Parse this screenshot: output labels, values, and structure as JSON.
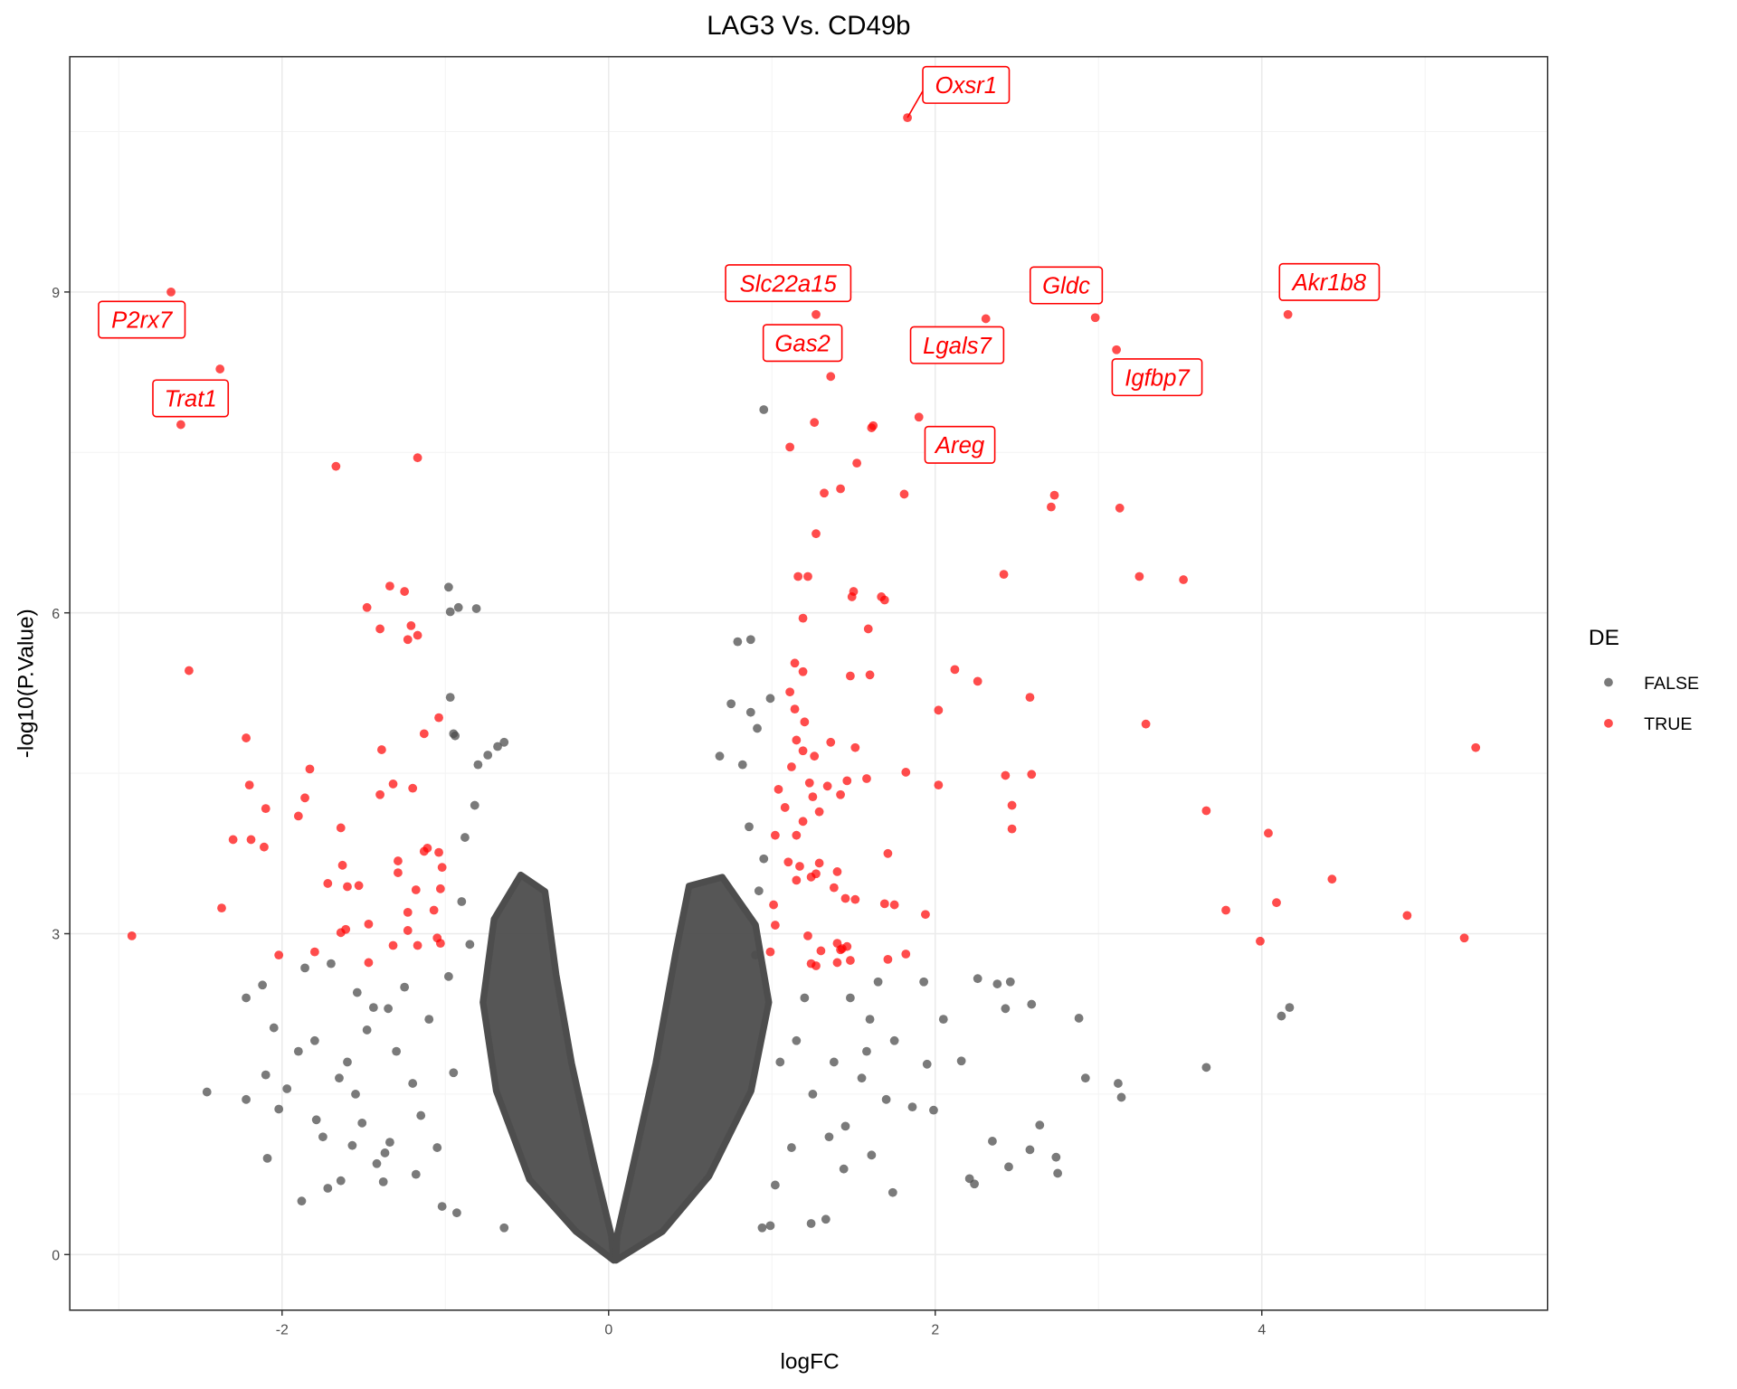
{
  "chart_data": {
    "type": "scatter",
    "title": "LAG3 Vs. CD49b",
    "xlabel": "logFC",
    "ylabel": "-log10(P.Value)",
    "xlim": [
      -3.3,
      5.75
    ],
    "ylim": [
      -0.52,
      11.2
    ],
    "x_ticks": [
      -2,
      0,
      2,
      4
    ],
    "y_ticks": [
      0,
      3,
      6,
      9
    ],
    "grid": true,
    "legend": {
      "title": "DE",
      "position": "right",
      "entries": [
        {
          "label": "FALSE",
          "color": "#4d4d4d"
        },
        {
          "label": "TRUE",
          "color": "#ff0000"
        }
      ]
    },
    "series": [
      {
        "name": "TRUE",
        "color": "#ff0000",
        "points": [
          [
            1.83,
            10.63
          ],
          [
            -2.68,
            9.0
          ],
          [
            1.27,
            8.79
          ],
          [
            2.31,
            8.75
          ],
          [
            2.98,
            8.76
          ],
          [
            4.16,
            8.79
          ],
          [
            3.11,
            8.46
          ],
          [
            -2.38,
            8.28
          ],
          [
            1.36,
            8.21
          ],
          [
            -2.62,
            7.76
          ],
          [
            1.26,
            7.78
          ],
          [
            1.61,
            7.73
          ],
          [
            1.62,
            7.75
          ],
          [
            1.9,
            7.83
          ],
          [
            1.11,
            7.55
          ],
          [
            1.52,
            7.4
          ],
          [
            -1.17,
            7.45
          ],
          [
            -1.67,
            7.37
          ],
          [
            1.42,
            7.16
          ],
          [
            1.32,
            7.12
          ],
          [
            1.81,
            7.11
          ],
          [
            2.73,
            7.1
          ],
          [
            2.71,
            6.99
          ],
          [
            3.13,
            6.98
          ],
          [
            1.27,
            6.74
          ],
          [
            1.16,
            6.34
          ],
          [
            1.22,
            6.34
          ],
          [
            2.42,
            6.36
          ],
          [
            3.25,
            6.34
          ],
          [
            3.52,
            6.31
          ],
          [
            -1.34,
            6.25
          ],
          [
            -1.25,
            6.2
          ],
          [
            1.5,
            6.2
          ],
          [
            1.49,
            6.15
          ],
          [
            1.67,
            6.15
          ],
          [
            1.69,
            6.12
          ],
          [
            -1.48,
            6.05
          ],
          [
            1.19,
            5.95
          ],
          [
            -1.21,
            5.88
          ],
          [
            -1.4,
            5.85
          ],
          [
            -1.17,
            5.79
          ],
          [
            -1.23,
            5.75
          ],
          [
            1.59,
            5.85
          ],
          [
            -2.57,
            5.46
          ],
          [
            1.14,
            5.53
          ],
          [
            1.19,
            5.45
          ],
          [
            2.12,
            5.47
          ],
          [
            1.48,
            5.41
          ],
          [
            1.6,
            5.42
          ],
          [
            2.26,
            5.36
          ],
          [
            2.58,
            5.21
          ],
          [
            1.11,
            5.26
          ],
          [
            1.14,
            5.1
          ],
          [
            2.02,
            5.09
          ],
          [
            -1.04,
            5.02
          ],
          [
            1.2,
            4.98
          ],
          [
            3.29,
            4.96
          ],
          [
            -1.13,
            4.87
          ],
          [
            -2.22,
            4.83
          ],
          [
            1.15,
            4.81
          ],
          [
            1.36,
            4.79
          ],
          [
            -1.39,
            4.72
          ],
          [
            1.51,
            4.74
          ],
          [
            5.31,
            4.74
          ],
          [
            1.19,
            4.71
          ],
          [
            1.26,
            4.66
          ],
          [
            -1.83,
            4.54
          ],
          [
            1.12,
            4.56
          ],
          [
            1.82,
            4.51
          ],
          [
            2.43,
            4.48
          ],
          [
            2.59,
            4.49
          ],
          [
            -1.32,
            4.4
          ],
          [
            -2.2,
            4.39
          ],
          [
            1.23,
            4.41
          ],
          [
            1.34,
            4.38
          ],
          [
            1.46,
            4.43
          ],
          [
            1.58,
            4.45
          ],
          [
            2.02,
            4.39
          ],
          [
            -1.2,
            4.36
          ],
          [
            1.04,
            4.35
          ],
          [
            -1.4,
            4.3
          ],
          [
            1.25,
            4.28
          ],
          [
            1.42,
            4.3
          ],
          [
            -1.86,
            4.27
          ],
          [
            2.47,
            4.2
          ],
          [
            -2.1,
            4.17
          ],
          [
            1.08,
            4.18
          ],
          [
            1.29,
            4.14
          ],
          [
            3.66,
            4.15
          ],
          [
            -1.9,
            4.1
          ],
          [
            1.19,
            4.05
          ],
          [
            -1.64,
            3.99
          ],
          [
            2.47,
            3.98
          ],
          [
            1.02,
            3.92
          ],
          [
            1.15,
            3.92
          ],
          [
            4.04,
            3.94
          ],
          [
            -2.3,
            3.88
          ],
          [
            -2.19,
            3.88
          ],
          [
            -2.11,
            3.81
          ],
          [
            -1.11,
            3.8
          ],
          [
            -1.13,
            3.77
          ],
          [
            -1.04,
            3.76
          ],
          [
            1.71,
            3.75
          ],
          [
            1.1,
            3.67
          ],
          [
            -1.29,
            3.68
          ],
          [
            -1.63,
            3.64
          ],
          [
            -1.02,
            3.62
          ],
          [
            1.17,
            3.63
          ],
          [
            1.29,
            3.66
          ],
          [
            -1.29,
            3.57
          ],
          [
            1.4,
            3.58
          ],
          [
            1.24,
            3.53
          ],
          [
            1.27,
            3.56
          ],
          [
            4.43,
            3.51
          ],
          [
            -1.72,
            3.47
          ],
          [
            -1.53,
            3.45
          ],
          [
            -1.6,
            3.44
          ],
          [
            -1.18,
            3.41
          ],
          [
            -1.03,
            3.42
          ],
          [
            1.38,
            3.43
          ],
          [
            1.15,
            3.5
          ],
          [
            1.45,
            3.33
          ],
          [
            1.51,
            3.32
          ],
          [
            1.01,
            3.27
          ],
          [
            1.69,
            3.28
          ],
          [
            1.75,
            3.27
          ],
          [
            4.09,
            3.29
          ],
          [
            3.78,
            3.22
          ],
          [
            -2.37,
            3.24
          ],
          [
            -1.07,
            3.22
          ],
          [
            -1.23,
            3.2
          ],
          [
            1.94,
            3.18
          ],
          [
            4.89,
            3.17
          ],
          [
            -1.47,
            3.09
          ],
          [
            1.02,
            3.08
          ],
          [
            -1.23,
            3.03
          ],
          [
            -1.61,
            3.04
          ],
          [
            -1.64,
            3.01
          ],
          [
            -2.92,
            2.98
          ],
          [
            1.22,
            2.98
          ],
          [
            5.24,
            2.96
          ],
          [
            -1.05,
            2.96
          ],
          [
            -1.03,
            2.91
          ],
          [
            3.99,
            2.93
          ],
          [
            1.4,
            2.91
          ],
          [
            1.43,
            2.86
          ],
          [
            1.46,
            2.88
          ],
          [
            1.42,
            2.85
          ],
          [
            -1.32,
            2.89
          ],
          [
            -1.17,
            2.89
          ],
          [
            0.99,
            2.83
          ],
          [
            1.3,
            2.84
          ],
          [
            1.82,
            2.81
          ],
          [
            -2.02,
            2.8
          ],
          [
            -1.8,
            2.83
          ],
          [
            -1.47,
            2.73
          ],
          [
            1.48,
            2.75
          ],
          [
            1.71,
            2.76
          ],
          [
            1.4,
            2.73
          ],
          [
            1.24,
            2.72
          ],
          [
            1.27,
            2.7
          ]
        ]
      },
      {
        "name": "FALSE",
        "color": "#4d4d4d",
        "points": [
          [
            0.95,
            7.9
          ],
          [
            -0.98,
            6.24
          ],
          [
            -0.92,
            6.05
          ],
          [
            -0.81,
            6.04
          ],
          [
            -0.97,
            6.01
          ],
          [
            0.79,
            5.73
          ],
          [
            0.87,
            5.75
          ],
          [
            -0.97,
            5.21
          ],
          [
            0.75,
            5.15
          ],
          [
            0.99,
            5.2
          ],
          [
            0.87,
            5.07
          ],
          [
            0.91,
            4.92
          ],
          [
            -0.64,
            4.79
          ],
          [
            -0.68,
            4.75
          ],
          [
            0.68,
            4.66
          ],
          [
            -0.95,
            4.87
          ],
          [
            -0.94,
            4.85
          ],
          [
            -0.74,
            4.67
          ],
          [
            -0.8,
            4.58
          ],
          [
            0.82,
            4.58
          ],
          [
            -2.46,
            1.52
          ],
          [
            -2.09,
            0.9
          ],
          [
            -1.88,
            0.5
          ],
          [
            -2.22,
            1.45
          ],
          [
            -2.12,
            2.52
          ],
          [
            -2.22,
            2.4
          ],
          [
            -2.05,
            2.12
          ],
          [
            4.12,
            2.23
          ],
          [
            4.17,
            2.31
          ],
          [
            3.66,
            1.75
          ],
          [
            3.12,
            1.6
          ],
          [
            3.14,
            1.47
          ],
          [
            2.92,
            1.65
          ],
          [
            2.88,
            2.21
          ],
          [
            2.26,
            2.58
          ],
          [
            2.38,
            2.53
          ],
          [
            2.46,
            2.55
          ],
          [
            2.59,
            2.34
          ],
          [
            2.43,
            2.3
          ],
          [
            2.05,
            2.2
          ],
          [
            1.93,
            2.55
          ],
          [
            2.16,
            1.81
          ],
          [
            1.95,
            1.78
          ],
          [
            1.99,
            1.35
          ],
          [
            1.86,
            1.38
          ],
          [
            2.35,
            1.06
          ],
          [
            2.64,
            1.21
          ],
          [
            2.58,
            0.98
          ],
          [
            2.45,
            0.82
          ],
          [
            2.74,
            0.91
          ],
          [
            2.75,
            0.76
          ],
          [
            2.21,
            0.71
          ],
          [
            2.24,
            0.66
          ],
          [
            1.74,
            0.58
          ],
          [
            1.61,
            0.93
          ],
          [
            1.44,
            0.8
          ],
          [
            1.33,
            0.33
          ],
          [
            1.24,
            0.29
          ],
          [
            0.99,
            0.27
          ],
          [
            0.94,
            0.25
          ],
          [
            -1.79,
            1.26
          ],
          [
            -1.72,
            0.62
          ],
          [
            -1.64,
            0.69
          ],
          [
            -1.38,
            0.68
          ],
          [
            -1.37,
            0.95
          ],
          [
            -1.34,
            1.05
          ],
          [
            -1.57,
            1.02
          ],
          [
            -1.51,
            1.23
          ],
          [
            -1.65,
            1.65
          ],
          [
            -1.97,
            1.55
          ],
          [
            -2.02,
            1.36
          ],
          [
            -2.1,
            1.68
          ],
          [
            -1.86,
            2.68
          ],
          [
            -1.7,
            2.72
          ],
          [
            -1.54,
            2.45
          ],
          [
            -1.44,
            2.31
          ],
          [
            -1.02,
            0.45
          ],
          [
            -0.93,
            0.39
          ],
          [
            -0.64,
            0.25
          ],
          [
            -1.8,
            2.0
          ],
          [
            -1.6,
            1.8
          ],
          [
            -1.48,
            2.1
          ],
          [
            -1.3,
            1.9
          ],
          [
            -1.25,
            2.5
          ],
          [
            -1.2,
            1.6
          ],
          [
            -1.15,
            1.3
          ],
          [
            -1.1,
            2.2
          ],
          [
            -1.05,
            1.0
          ],
          [
            -1.35,
            2.3
          ],
          [
            -1.55,
            1.5
          ],
          [
            -1.75,
            1.1
          ],
          [
            -1.9,
            1.9
          ],
          [
            -1.42,
            0.85
          ],
          [
            -1.18,
            0.75
          ],
          [
            -0.98,
            2.6
          ],
          [
            -0.95,
            1.7
          ],
          [
            -0.9,
            3.3
          ],
          [
            -0.88,
            3.9
          ],
          [
            -0.85,
            2.9
          ],
          [
            -0.82,
            4.2
          ],
          [
            1.6,
            2.2
          ],
          [
            1.75,
            2.0
          ],
          [
            1.7,
            1.45
          ],
          [
            1.55,
            1.65
          ],
          [
            1.45,
            1.2
          ],
          [
            1.35,
            1.1
          ],
          [
            1.25,
            1.5
          ],
          [
            1.15,
            2.0
          ],
          [
            1.05,
            1.8
          ],
          [
            1.2,
            2.4
          ],
          [
            1.48,
            2.4
          ],
          [
            1.65,
            2.55
          ],
          [
            1.58,
            1.9
          ],
          [
            1.38,
            1.8
          ],
          [
            1.12,
            1.0
          ],
          [
            1.02,
            0.65
          ],
          [
            0.92,
            3.4
          ],
          [
            0.9,
            2.8
          ],
          [
            0.86,
            4.0
          ],
          [
            0.95,
            3.7
          ]
        ]
      }
    ],
    "labels": [
      {
        "gene": "Oxsr1",
        "x": 1.83,
        "y": 10.63
      },
      {
        "gene": "Slc22a15",
        "x": 1.27,
        "y": 8.79
      },
      {
        "gene": "Gldc",
        "x": 2.98,
        "y": 8.76
      },
      {
        "gene": "Akr1b8",
        "x": 4.16,
        "y": 8.79
      },
      {
        "gene": "P2rx7",
        "x": -2.68,
        "y": 9.0
      },
      {
        "gene": "Gas2",
        "x": 1.36,
        "y": 8.21
      },
      {
        "gene": "Lgals7",
        "x": 2.31,
        "y": 8.75
      },
      {
        "gene": "Igfbp7",
        "x": 3.11,
        "y": 8.46
      },
      {
        "gene": "Trat1",
        "x": -2.62,
        "y": 7.76
      },
      {
        "gene": "Areg",
        "x": 1.9,
        "y": 7.83
      }
    ]
  }
}
